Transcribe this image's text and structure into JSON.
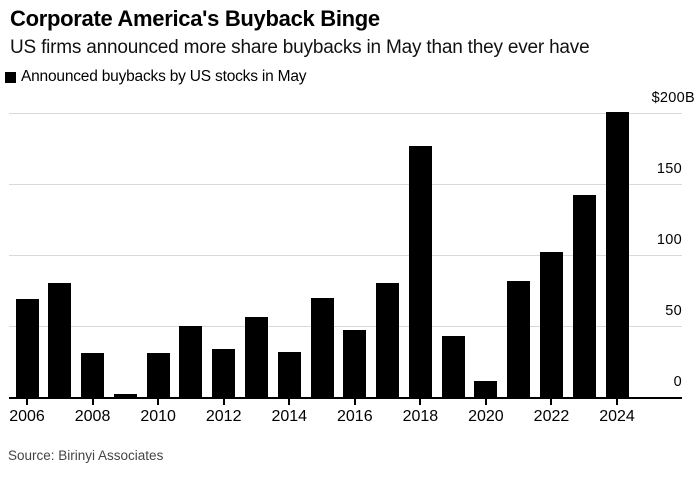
{
  "header": {
    "title": "Corporate America's Buyback Binge",
    "subtitle": "US firms announced more share buybacks in May than they ever have"
  },
  "legend": {
    "label": "Announced buybacks by US stocks in May"
  },
  "source": "Source: Birinyi Associates",
  "colors": {
    "bar": "#000000",
    "gridline": "#d9d9d9",
    "axis": "#000000",
    "text": "#000000",
    "source_text": "#454545",
    "background": "#ffffff"
  },
  "chart_data": {
    "type": "bar",
    "title": "Corporate America's Buyback Binge",
    "subtitle": "US firms announced more share buybacks in May than they ever have",
    "legend_label": "Announced buybacks by US stocks in May",
    "unit": "USD billions",
    "categories": [
      2006,
      2007,
      2008,
      2009,
      2010,
      2011,
      2012,
      2013,
      2014,
      2015,
      2016,
      2017,
      2018,
      2019,
      2020,
      2021,
      2022,
      2023,
      2024
    ],
    "values": [
      69,
      80,
      31,
      2,
      31,
      50,
      34,
      56,
      32,
      70,
      47,
      80,
      177,
      43,
      11,
      82,
      102,
      142,
      201
    ],
    "xlabel": "",
    "ylabel": "",
    "ylim": [
      0,
      205
    ],
    "grid": "horizontal",
    "legend_position": "top-left",
    "y_axis_side": "right",
    "y_ticks": [
      {
        "value": 200,
        "label": "$200B"
      },
      {
        "value": 150,
        "label": "150"
      },
      {
        "value": 100,
        "label": "100"
      },
      {
        "value": 50,
        "label": "50"
      },
      {
        "value": 0,
        "label": "0"
      }
    ],
    "x_tick_years": [
      2006,
      2008,
      2010,
      2012,
      2014,
      2016,
      2018,
      2020,
      2022,
      2024
    ],
    "source": "Source: Birinyi Associates"
  }
}
